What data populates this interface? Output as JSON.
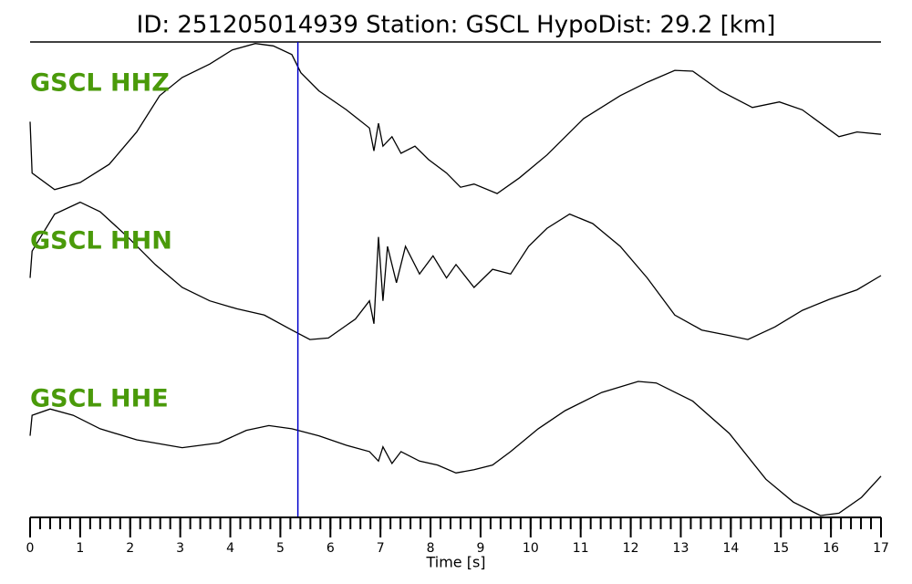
{
  "chart_data": {
    "type": "line",
    "title": "ID: 251205014939   Station: GSCL   HypoDist:     29.2 [km]",
    "xlabel": "Time [s]",
    "xlim": [
      0,
      17
    ],
    "xticks": [
      0,
      1,
      2,
      3,
      4,
      5,
      6,
      7,
      8,
      9,
      10,
      11,
      12,
      13,
      14,
      15,
      16,
      17
    ],
    "minor_tick_step": 0.2,
    "marker_x": 5.35,
    "marker_color": "#0000cc",
    "label_color": "#4a9a0a",
    "ylim": [
      -1,
      1
    ],
    "series": [
      {
        "name": "GSCL HHZ",
        "color": "#000000",
        "x": [
          0,
          0.04,
          0.49,
          1.0,
          1.58,
          2.13,
          2.59,
          3.04,
          3.59,
          4.04,
          4.5,
          4.86,
          5.23,
          5.41,
          5.77,
          6.32,
          6.78,
          6.87,
          6.96,
          7.05,
          7.23,
          7.41,
          7.69,
          7.96,
          8.32,
          8.6,
          8.87,
          9.33,
          9.78,
          10.33,
          11.06,
          11.79,
          12.33,
          12.88,
          13.24,
          13.79,
          14.43,
          14.97,
          15.43,
          16.16,
          16.52,
          17
        ],
        "values": [
          -0.01,
          -0.66,
          -0.87,
          -0.78,
          -0.55,
          -0.14,
          0.32,
          0.55,
          0.72,
          0.9,
          0.98,
          0.95,
          0.84,
          0.61,
          0.38,
          0.14,
          -0.09,
          -0.38,
          -0.03,
          -0.32,
          -0.2,
          -0.41,
          -0.32,
          -0.49,
          -0.66,
          -0.84,
          -0.8,
          -0.92,
          -0.72,
          -0.43,
          0.03,
          0.32,
          0.49,
          0.64,
          0.63,
          0.38,
          0.17,
          0.24,
          0.14,
          -0.2,
          -0.14,
          -0.17
        ]
      },
      {
        "name": "GSCL HHN",
        "color": "#000000",
        "x": [
          0,
          0.04,
          0.49,
          1.0,
          1.4,
          1.95,
          2.5,
          3.04,
          3.59,
          4.13,
          4.68,
          5.23,
          5.59,
          5.96,
          6.5,
          6.78,
          6.87,
          6.96,
          7.05,
          7.14,
          7.32,
          7.5,
          7.78,
          8.05,
          8.32,
          8.51,
          8.87,
          9.24,
          9.6,
          9.96,
          10.33,
          10.78,
          11.24,
          11.79,
          12.33,
          12.88,
          13.42,
          13.97,
          14.34,
          14.88,
          15.43,
          15.97,
          16.52,
          17
        ],
        "values": [
          0.01,
          0.35,
          0.82,
          0.97,
          0.85,
          0.53,
          0.18,
          -0.11,
          -0.28,
          -0.38,
          -0.46,
          -0.65,
          -0.77,
          -0.75,
          -0.51,
          -0.28,
          -0.57,
          0.53,
          -0.28,
          0.41,
          -0.05,
          0.41,
          0.06,
          0.29,
          0.01,
          0.18,
          -0.11,
          0.12,
          0.06,
          0.41,
          0.64,
          0.82,
          0.7,
          0.41,
          0.01,
          -0.46,
          -0.65,
          -0.72,
          -0.77,
          -0.61,
          -0.4,
          -0.26,
          -0.14,
          0.04
        ]
      },
      {
        "name": "GSCL HHE",
        "color": "#000000",
        "x": [
          0,
          0.04,
          0.4,
          0.86,
          1.4,
          2.13,
          3.04,
          3.77,
          4.32,
          4.77,
          5.23,
          5.77,
          6.32,
          6.78,
          6.96,
          7.05,
          7.23,
          7.41,
          7.78,
          8.14,
          8.51,
          8.87,
          9.24,
          9.6,
          10.15,
          10.69,
          11.42,
          12.15,
          12.51,
          13.24,
          13.97,
          14.7,
          15.25,
          15.79,
          16.16,
          16.61,
          17
        ],
        "values": [
          0.01,
          0.27,
          0.35,
          0.27,
          0.1,
          -0.04,
          -0.14,
          -0.08,
          0.08,
          0.14,
          0.1,
          0.01,
          -0.11,
          -0.19,
          -0.31,
          -0.13,
          -0.34,
          -0.19,
          -0.31,
          -0.36,
          -0.46,
          -0.42,
          -0.36,
          -0.19,
          0.1,
          0.33,
          0.56,
          0.7,
          0.68,
          0.45,
          0.04,
          -0.54,
          -0.83,
          -1.0,
          -0.97,
          -0.77,
          -0.5
        ]
      }
    ]
  }
}
